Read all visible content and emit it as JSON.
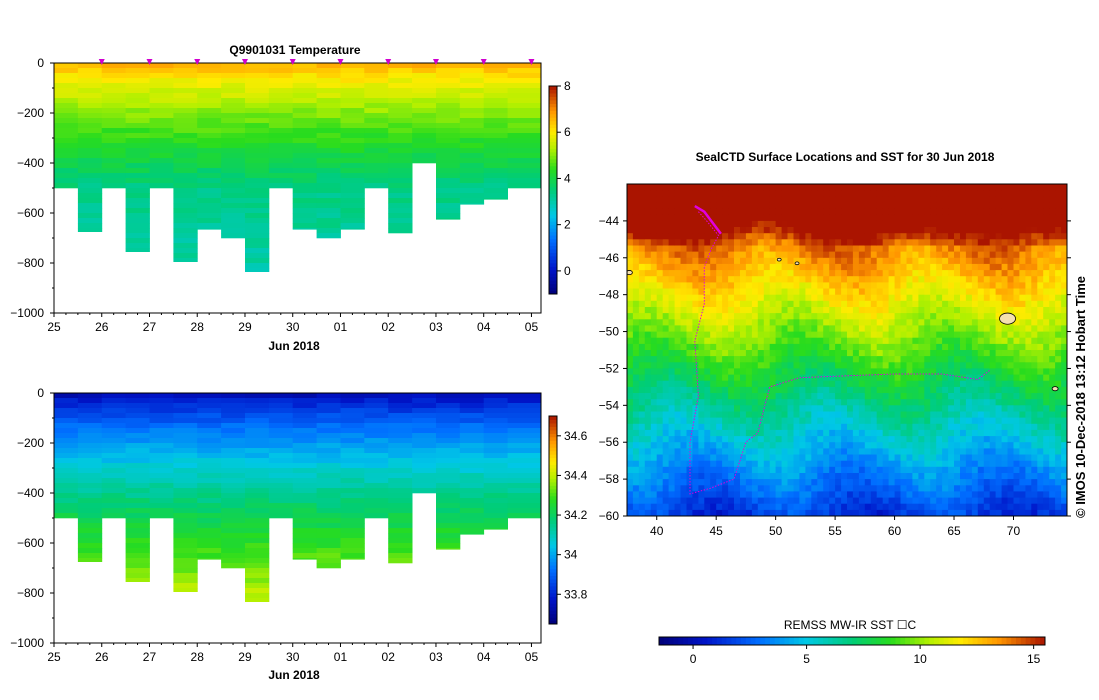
{
  "chart_data": [
    {
      "type": "heatmap",
      "title": "Q9901031  Temperature",
      "xlabel": "Jun 2018",
      "ylabel": "",
      "x_ticks": [
        "25",
        "26",
        "27",
        "28",
        "29",
        "30",
        "01",
        "02",
        "03",
        "04",
        "05"
      ],
      "y_ticks": [
        "0",
        "−200",
        "−400",
        "−600",
        "−800",
        "−1000"
      ],
      "ylim": [
        -1000,
        0
      ],
      "colorbar": {
        "ticks": [
          "0",
          "2",
          "4",
          "6",
          "8"
        ],
        "range": [
          -1,
          8
        ]
      },
      "profile_days": [
        25.0,
        25.5,
        26.0,
        26.5,
        27.0,
        27.5,
        28.0,
        28.5,
        29.0,
        29.5,
        30.0,
        30.5,
        1.0,
        1.5,
        2.0,
        2.5,
        3.0,
        3.5,
        4.0,
        4.5
      ],
      "profile_max_depth_m": [
        500,
        675,
        500,
        755,
        500,
        795,
        665,
        700,
        835,
        500,
        665,
        700,
        665,
        500,
        680,
        400,
        625,
        565,
        545,
        500
      ],
      "surface_value": 6.8,
      "value_at_500m": 3.4,
      "value_at_max_depth": 3.0
    },
    {
      "type": "heatmap",
      "title": "",
      "xlabel": "Jun 2018",
      "ylabel": "",
      "x_ticks": [
        "25",
        "26",
        "27",
        "28",
        "29",
        "30",
        "01",
        "02",
        "03",
        "04",
        "05"
      ],
      "y_ticks": [
        "0",
        "−200",
        "−400",
        "−600",
        "−800",
        "−1000"
      ],
      "ylim": [
        -1000,
        0
      ],
      "colorbar": {
        "ticks": [
          "33.8",
          "34",
          "34.2",
          "34.4",
          "34.6"
        ],
        "range": [
          33.65,
          34.7
        ]
      },
      "surface_value": 33.72,
      "value_at_500m": 34.22,
      "value_at_max_depth": 34.42
    },
    {
      "type": "heatmap",
      "title": "SealCTD Surface Locations and SST for 30 Jun 2018",
      "xlabel": "",
      "ylabel": "",
      "x_ticks": [
        "40",
        "45",
        "50",
        "55",
        "60",
        "65",
        "70"
      ],
      "y_ticks": [
        "−44",
        "−46",
        "−48",
        "−50",
        "−52",
        "−54",
        "−56",
        "−58",
        "−60"
      ],
      "xlim": [
        37.5,
        74.5
      ],
      "ylim": [
        -60,
        -42
      ],
      "colorbar": {
        "title": "REMSS MW-IR SST ☐C",
        "ticks": [
          "0",
          "5",
          "10",
          "15"
        ],
        "range": [
          -1.5,
          15.5
        ]
      },
      "side_label": "©  IMOS 10-Dec-2018 13:12 Hobart Time"
    }
  ]
}
